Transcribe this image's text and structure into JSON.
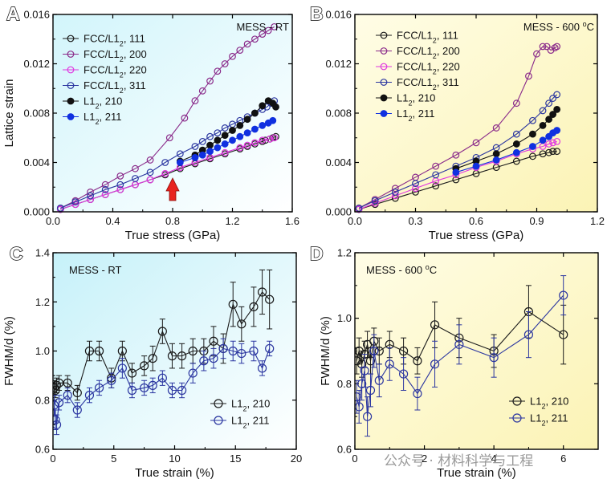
{
  "chart_data": [
    {
      "id": "A",
      "panel_letter": "A",
      "type": "line",
      "title": "MESS - RT",
      "xlabel": "True stress (GPa)",
      "ylabel": "Lattice strain",
      "xlim": [
        0,
        1.6
      ],
      "ylim": [
        0,
        0.016
      ],
      "xticks": [
        0.0,
        0.4,
        0.8,
        1.2,
        1.6
      ],
      "yticks": [
        0.0,
        0.004,
        0.008,
        0.012,
        0.016
      ],
      "xtick_labels": [
        "0.0",
        "0.4",
        "0.8",
        "1.2",
        "1.6"
      ],
      "ytick_labels": [
        "0.000",
        "0.004",
        "0.008",
        "0.012",
        "0.016"
      ],
      "background": [
        "#d2f5fb",
        "#ffffff"
      ],
      "legend_position": "top-left",
      "annotation": {
        "type": "arrow",
        "x": 0.8,
        "color": "#e8231f"
      },
      "series": [
        {
          "name": "FCC/L1₂, 111",
          "color": "#1a1a1a",
          "fill": "open",
          "x": [
            0.05,
            0.15,
            0.25,
            0.35,
            0.45,
            0.55,
            0.65,
            0.75,
            0.85,
            0.95,
            1.05,
            1.15,
            1.25,
            1.3,
            1.35,
            1.4,
            1.42,
            1.45,
            1.47,
            1.49
          ],
          "y": [
            0.0002,
            0.0006,
            0.001,
            0.0014,
            0.0018,
            0.0022,
            0.0026,
            0.003,
            0.0035,
            0.0039,
            0.0043,
            0.0047,
            0.0051,
            0.0053,
            0.0055,
            0.0057,
            0.0058,
            0.0059,
            0.006,
            0.0061
          ]
        },
        {
          "name": "FCC/L1₂, 200",
          "color": "#8a2a8a",
          "fill": "open",
          "x": [
            0.05,
            0.15,
            0.25,
            0.35,
            0.45,
            0.55,
            0.65,
            0.78,
            0.88,
            0.95,
            1.0,
            1.05,
            1.1,
            1.15,
            1.2,
            1.25,
            1.3,
            1.35,
            1.4,
            1.44,
            1.48
          ],
          "y": [
            0.0003,
            0.0009,
            0.0016,
            0.0022,
            0.0029,
            0.0035,
            0.0042,
            0.006,
            0.0076,
            0.009,
            0.0098,
            0.0106,
            0.0114,
            0.012,
            0.0126,
            0.0131,
            0.0136,
            0.014,
            0.0144,
            0.0147,
            0.015
          ]
        },
        {
          "name": "FCC/L1₂, 220",
          "color": "#e036e0",
          "fill": "open",
          "x": [
            0.05,
            0.15,
            0.25,
            0.35,
            0.45,
            0.55,
            0.65,
            0.75,
            0.85,
            0.95,
            1.05,
            1.15,
            1.25,
            1.3,
            1.35,
            1.4,
            1.45,
            1.48
          ],
          "y": [
            0.0002,
            0.0006,
            0.001,
            0.0014,
            0.0018,
            0.0022,
            0.0026,
            0.0031,
            0.0036,
            0.004,
            0.0044,
            0.0048,
            0.0052,
            0.0054,
            0.0056,
            0.0058,
            0.0059,
            0.006
          ]
        },
        {
          "name": "FCC/L1₂, 311",
          "color": "#2a35a0",
          "fill": "open",
          "x": [
            0.05,
            0.15,
            0.25,
            0.35,
            0.45,
            0.55,
            0.65,
            0.75,
            0.85,
            0.95,
            1.0,
            1.05,
            1.1,
            1.15,
            1.2,
            1.25,
            1.3,
            1.35,
            1.4,
            1.43,
            1.46,
            1.48
          ],
          "y": [
            0.0003,
            0.0008,
            0.0013,
            0.0018,
            0.0022,
            0.0027,
            0.0032,
            0.004,
            0.0047,
            0.0053,
            0.0057,
            0.0061,
            0.0064,
            0.0068,
            0.0071,
            0.0074,
            0.0077,
            0.008,
            0.0083,
            0.0085,
            0.0088,
            0.009
          ]
        },
        {
          "name": "L1₂, 210",
          "color": "#111111",
          "fill": "solid",
          "x": [
            0.85,
            0.95,
            1.0,
            1.05,
            1.1,
            1.15,
            1.2,
            1.25,
            1.3,
            1.35,
            1.4,
            1.44,
            1.47,
            1.49
          ],
          "y": [
            0.0041,
            0.0046,
            0.005,
            0.0054,
            0.0058,
            0.0062,
            0.0066,
            0.007,
            0.0075,
            0.008,
            0.0086,
            0.009,
            0.0088,
            0.0085
          ]
        },
        {
          "name": "L1₂, 211",
          "color": "#1030e0",
          "fill": "solid",
          "x": [
            0.85,
            0.95,
            1.0,
            1.05,
            1.1,
            1.15,
            1.2,
            1.25,
            1.3,
            1.35,
            1.4,
            1.44,
            1.47
          ],
          "y": [
            0.004,
            0.0044,
            0.0046,
            0.0049,
            0.0052,
            0.0055,
            0.0058,
            0.0061,
            0.0064,
            0.0067,
            0.007,
            0.0072,
            0.0074
          ]
        }
      ]
    },
    {
      "id": "B",
      "panel_letter": "B",
      "type": "line",
      "title": "MESS - 600 °C",
      "xlabel": "True stress (GPa)",
      "ylabel": "",
      "xlim": [
        0,
        1.2
      ],
      "ylim": [
        0,
        0.016
      ],
      "xticks": [
        0.0,
        0.3,
        0.6,
        0.9,
        1.2
      ],
      "yticks": [
        0.0,
        0.004,
        0.008,
        0.012,
        0.016
      ],
      "xtick_labels": [
        "0.0",
        "0.3",
        "0.6",
        "0.9",
        "1.2"
      ],
      "ytick_labels": [
        "0.000",
        "0.004",
        "0.008",
        "0.012",
        "0.016"
      ],
      "background": [
        "#fffde6",
        "#fbf3b5"
      ],
      "legend_position": "top-left",
      "series": [
        {
          "name": "FCC/L1₂, 111",
          "color": "#1a1a1a",
          "fill": "open",
          "x": [
            0.02,
            0.1,
            0.2,
            0.3,
            0.4,
            0.5,
            0.6,
            0.7,
            0.8,
            0.88,
            0.93,
            0.96,
            0.98,
            1.0
          ],
          "y": [
            0.0002,
            0.0006,
            0.0011,
            0.0016,
            0.0021,
            0.0026,
            0.0031,
            0.0036,
            0.0041,
            0.0045,
            0.0047,
            0.0048,
            0.0049,
            0.0049
          ]
        },
        {
          "name": "FCC/L1₂, 200",
          "color": "#8a2a8a",
          "fill": "open",
          "x": [
            0.02,
            0.1,
            0.2,
            0.3,
            0.4,
            0.5,
            0.6,
            0.7,
            0.8,
            0.86,
            0.9,
            0.93,
            0.95,
            0.97,
            0.99,
            1.0
          ],
          "y": [
            0.0003,
            0.001,
            0.0019,
            0.0028,
            0.0037,
            0.0046,
            0.0056,
            0.0068,
            0.0088,
            0.011,
            0.0128,
            0.0134,
            0.0134,
            0.0131,
            0.0133,
            0.0134
          ]
        },
        {
          "name": "FCC/L1₂, 220",
          "color": "#e036e0",
          "fill": "open",
          "x": [
            0.02,
            0.1,
            0.2,
            0.3,
            0.4,
            0.5,
            0.6,
            0.7,
            0.8,
            0.88,
            0.93,
            0.96,
            0.98,
            1.0
          ],
          "y": [
            0.0002,
            0.0007,
            0.0013,
            0.0019,
            0.0025,
            0.003,
            0.0036,
            0.0041,
            0.0047,
            0.0051,
            0.0053,
            0.0055,
            0.0056,
            0.0057
          ]
        },
        {
          "name": "FCC/L1₂, 311",
          "color": "#2a35a0",
          "fill": "open",
          "x": [
            0.02,
            0.1,
            0.2,
            0.3,
            0.4,
            0.5,
            0.6,
            0.7,
            0.8,
            0.88,
            0.93,
            0.96,
            0.98,
            1.0
          ],
          "y": [
            0.0003,
            0.0009,
            0.0016,
            0.0023,
            0.003,
            0.0037,
            0.0044,
            0.0052,
            0.0063,
            0.0074,
            0.0082,
            0.0088,
            0.0092,
            0.0095
          ]
        },
        {
          "name": "L1₂, 210",
          "color": "#111111",
          "fill": "solid",
          "x": [
            0.5,
            0.6,
            0.7,
            0.8,
            0.88,
            0.93,
            0.96,
            0.98,
            1.0
          ],
          "y": [
            0.0035,
            0.0041,
            0.0047,
            0.0055,
            0.0063,
            0.007,
            0.0075,
            0.0079,
            0.0083
          ]
        },
        {
          "name": "L1₂, 211",
          "color": "#1030e0",
          "fill": "solid",
          "x": [
            0.5,
            0.6,
            0.7,
            0.8,
            0.88,
            0.93,
            0.96,
            0.98,
            1.0
          ],
          "y": [
            0.0032,
            0.0037,
            0.0042,
            0.0048,
            0.0053,
            0.0058,
            0.0061,
            0.0064,
            0.0066
          ]
        }
      ]
    },
    {
      "id": "C",
      "panel_letter": "C",
      "type": "line",
      "title": "MESS - RT",
      "xlabel": "True strain (%)",
      "ylabel": "FWHM/d (%)",
      "xlim": [
        0,
        20
      ],
      "ylim": [
        0.6,
        1.4
      ],
      "xticks": [
        0,
        5,
        10,
        15,
        20
      ],
      "yticks": [
        0.6,
        0.8,
        1.0,
        1.2,
        1.4
      ],
      "xtick_labels": [
        "0",
        "5",
        "10",
        "15",
        "20"
      ],
      "ytick_labels": [
        "0.6",
        "0.8",
        "1.0",
        "1.2",
        "1.4"
      ],
      "background": [
        "#c6f1f9",
        "#ffffff"
      ],
      "legend_position": "bottom-right",
      "series": [
        {
          "name": "L1₂, 210",
          "color": "#1a1a1a",
          "fill": "open",
          "x": [
            0.1,
            0.2,
            0.3,
            0.5,
            1.2,
            2.0,
            3.0,
            3.8,
            4.8,
            5.7,
            6.5,
            7.5,
            8.2,
            9.0,
            9.8,
            10.6,
            11.5,
            12.4,
            13.2,
            14.0,
            14.8,
            15.5,
            16.5,
            17.2,
            17.8
          ],
          "y": [
            0.85,
            0.84,
            0.86,
            0.87,
            0.87,
            0.83,
            1.0,
            1.0,
            0.89,
            1.0,
            0.91,
            0.94,
            0.97,
            1.08,
            0.98,
            0.98,
            1.0,
            1.0,
            1.04,
            1.01,
            1.19,
            1.11,
            1.18,
            1.24,
            1.21
          ],
          "err": [
            0.03,
            0.03,
            0.03,
            0.03,
            0.03,
            0.03,
            0.04,
            0.04,
            0.04,
            0.04,
            0.04,
            0.04,
            0.05,
            0.05,
            0.05,
            0.05,
            0.05,
            0.05,
            0.06,
            0.06,
            0.09,
            0.07,
            0.08,
            0.09,
            0.12
          ]
        },
        {
          "name": "L1₂, 211",
          "color": "#2a35a0",
          "fill": "open",
          "x": [
            0.1,
            0.2,
            0.3,
            0.5,
            1.2,
            2.0,
            3.0,
            3.8,
            4.8,
            5.7,
            6.5,
            7.5,
            8.2,
            9.0,
            9.8,
            10.6,
            11.5,
            12.4,
            13.2,
            14.0,
            14.8,
            15.5,
            16.5,
            17.2,
            17.8
          ],
          "y": [
            0.78,
            0.72,
            0.7,
            0.79,
            0.82,
            0.76,
            0.82,
            0.85,
            0.88,
            0.93,
            0.84,
            0.85,
            0.86,
            0.89,
            0.84,
            0.84,
            0.91,
            0.96,
            0.97,
            1.01,
            1.0,
            0.99,
            1.0,
            0.93,
            1.01
          ],
          "err": [
            0.04,
            0.04,
            0.04,
            0.03,
            0.03,
            0.03,
            0.03,
            0.03,
            0.03,
            0.04,
            0.03,
            0.03,
            0.03,
            0.03,
            0.03,
            0.03,
            0.04,
            0.04,
            0.04,
            0.04,
            0.04,
            0.04,
            0.04,
            0.03,
            0.03
          ]
        }
      ]
    },
    {
      "id": "D",
      "panel_letter": "D",
      "type": "line",
      "title": "MESS - 600 °C",
      "xlabel": "True strain (%)",
      "ylabel": "FWHM/d (%)",
      "xlim": [
        0,
        7
      ],
      "ylim": [
        0.6,
        1.2
      ],
      "xticks": [
        0,
        2,
        4,
        6
      ],
      "yticks": [
        0.6,
        0.8,
        1.0,
        1.2
      ],
      "xtick_labels": [
        "0",
        "2",
        "4",
        "6"
      ],
      "ytick_labels": [
        "0.6",
        "0.8",
        "1.0",
        "1.2"
      ],
      "background": [
        "#fffde6",
        "#fbf3b5"
      ],
      "legend_position": "bottom-right",
      "series": [
        {
          "name": "L1₂, 210",
          "color": "#1a1a1a",
          "fill": "open",
          "x": [
            0.05,
            0.12,
            0.2,
            0.28,
            0.36,
            0.45,
            0.55,
            0.7,
            1.0,
            1.4,
            1.8,
            2.3,
            3.0,
            4.0,
            5.0,
            6.0
          ],
          "y": [
            0.87,
            0.9,
            0.86,
            0.89,
            0.92,
            0.87,
            0.93,
            0.9,
            0.92,
            0.9,
            0.87,
            0.98,
            0.94,
            0.9,
            1.02,
            0.95
          ],
          "err": [
            0.04,
            0.04,
            0.04,
            0.04,
            0.04,
            0.04,
            0.04,
            0.04,
            0.04,
            0.04,
            0.04,
            0.07,
            0.06,
            0.05,
            0.08,
            0.09
          ]
        },
        {
          "name": "L1₂, 211",
          "color": "#2a35a0",
          "fill": "open",
          "x": [
            0.05,
            0.12,
            0.2,
            0.28,
            0.36,
            0.45,
            0.55,
            0.7,
            1.0,
            1.4,
            1.8,
            2.3,
            3.0,
            4.0,
            5.0,
            6.0
          ],
          "y": [
            0.76,
            0.73,
            0.8,
            0.84,
            0.7,
            0.78,
            0.9,
            0.81,
            0.86,
            0.83,
            0.77,
            0.86,
            0.92,
            0.88,
            0.95,
            1.07
          ],
          "err": [
            0.05,
            0.05,
            0.05,
            0.05,
            0.06,
            0.05,
            0.05,
            0.05,
            0.05,
            0.05,
            0.05,
            0.07,
            0.06,
            0.06,
            0.07,
            0.06
          ]
        }
      ]
    }
  ],
  "watermark": "公众号 · 材料科学与工程"
}
